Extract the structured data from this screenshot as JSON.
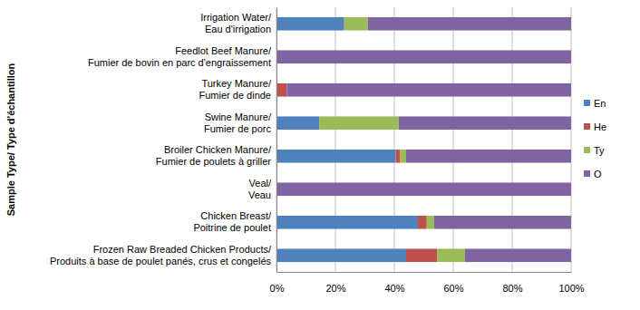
{
  "chart_data": {
    "type": "bar",
    "orientation": "horizontal",
    "stacked": true,
    "grid": true,
    "legend": "right",
    "y_label": "Sample Type/ Type d'échantillon",
    "categories": [
      "Irrigation Water/\nEau d'irrigation",
      "Feedlot Beef Manure/\nFumier de bovin en parc d'engraissement",
      "Turkey Manure/\nFumier de dinde",
      "Swine Manure/\nFumier de porc",
      "Broiler Chicken Manure/\nFumier de poulets à griller",
      "Veal/\nVeau",
      "Chicken Breast/\nPoitrine de poulet",
      "Frozen Raw Breaded Chicken Products/\nProduits à base de poulet panés, crus et congelés"
    ],
    "series": [
      {
        "name": "En",
        "color": "#4f81bd",
        "values": [
          23,
          0,
          0,
          14.5,
          40.5,
          0,
          48,
          44
        ]
      },
      {
        "name": "He",
        "color": "#c0504d",
        "values": [
          0,
          0,
          3.5,
          0,
          1.5,
          0,
          3,
          10.5
        ]
      },
      {
        "name": "Ty",
        "color": "#9bbb59",
        "values": [
          8,
          0,
          0,
          27,
          2,
          0,
          2.5,
          9.5
        ]
      },
      {
        "name": "O",
        "color": "#8064a2",
        "values": [
          69,
          100,
          96.5,
          58.5,
          56,
          100,
          46.5,
          36
        ]
      }
    ],
    "xlim": [
      0,
      100
    ],
    "xticks": [
      {
        "value": 0,
        "label": "0%"
      },
      {
        "value": 20,
        "label": "20%"
      },
      {
        "value": 40,
        "label": "40%"
      },
      {
        "value": 60,
        "label": "60%"
      },
      {
        "value": 80,
        "label": "80%"
      },
      {
        "value": 100,
        "label": "100%"
      }
    ]
  }
}
